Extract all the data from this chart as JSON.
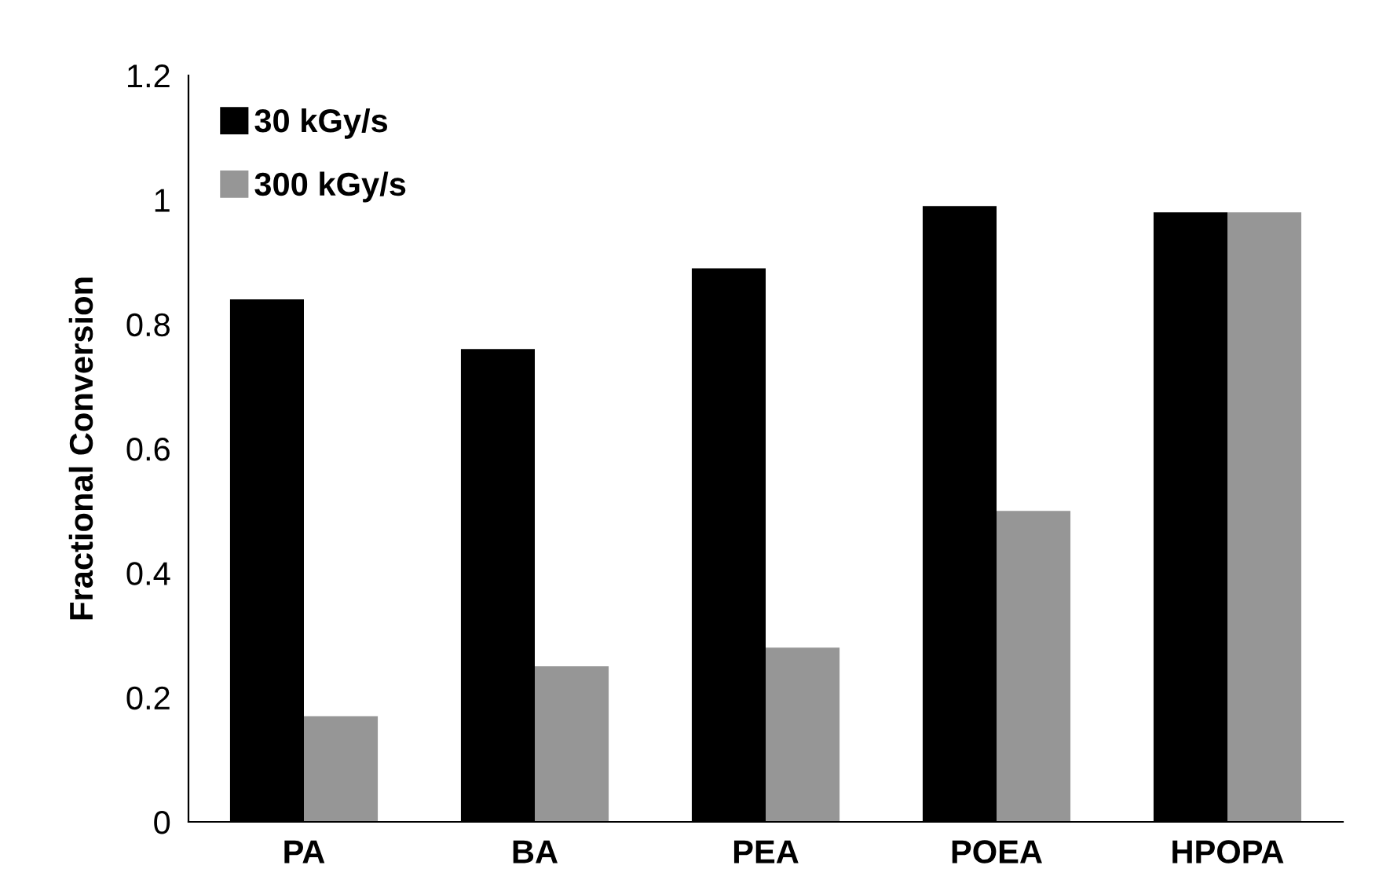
{
  "chart_data": {
    "type": "bar",
    "ylabel": "Fractional Conversion",
    "categories": [
      "PA",
      "BA",
      "PEA",
      "POEA",
      "HPOPA"
    ],
    "series": [
      {
        "name": "30 kGy/s",
        "color": "#000000",
        "values": [
          0.84,
          0.76,
          0.89,
          0.99,
          0.98
        ]
      },
      {
        "name": "300 kGy/s",
        "color": "#969696",
        "values": [
          0.17,
          0.25,
          0.28,
          0.5,
          0.98
        ]
      }
    ],
    "ylim": [
      0,
      1.2
    ],
    "yticks": [
      0,
      0.2,
      0.4,
      0.6,
      0.8,
      1,
      1.2
    ],
    "grid": false,
    "legend": "top left"
  }
}
